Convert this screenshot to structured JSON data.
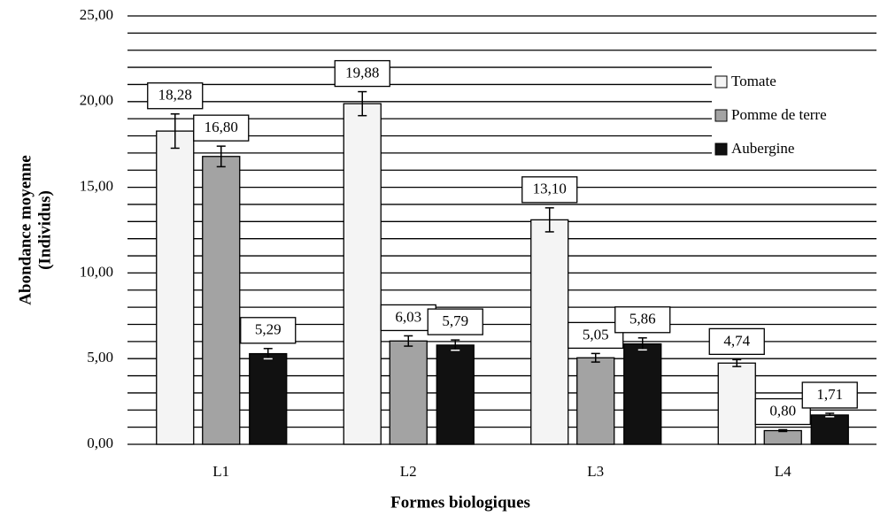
{
  "chart_data": {
    "type": "bar",
    "x_label": "Formes biologiques",
    "y_label": [
      "Abondance  moyenne",
      "(Individus)"
    ],
    "categories": [
      "L1",
      "L2",
      "L3",
      "L4"
    ],
    "series": [
      {
        "name": "Tomate",
        "color": "#f4f4f4",
        "values": [
          18.28,
          19.88,
          13.1,
          4.74
        ],
        "value_labels": [
          "18,28",
          "19,88",
          "13,10",
          "4,74"
        ],
        "errors": [
          1.0,
          0.7,
          0.7,
          0.2
        ]
      },
      {
        "name": "Pomme de terre",
        "color": "#a3a3a3",
        "values": [
          16.8,
          6.03,
          5.05,
          0.8
        ],
        "value_labels": [
          "16,80",
          "6,03",
          "5,05",
          "0,80"
        ],
        "errors": [
          0.6,
          0.3,
          0.25,
          0.05
        ]
      },
      {
        "name": "Aubergine",
        "color": "#111111",
        "values": [
          5.29,
          5.79,
          5.86,
          1.71
        ],
        "value_labels": [
          "5,29",
          "5,79",
          "5,86",
          "1,71"
        ],
        "errors": [
          0.3,
          0.3,
          0.35,
          0.1
        ]
      }
    ],
    "ylim": [
      0,
      25
    ],
    "yticks": [
      {
        "value": 0,
        "label": "0,00"
      },
      {
        "value": 5,
        "label": "5,00"
      },
      {
        "value": 10,
        "label": "10,00"
      },
      {
        "value": 15,
        "label": "15,00"
      },
      {
        "value": 20,
        "label": "20,00"
      },
      {
        "value": 25,
        "label": "25,00"
      }
    ],
    "grid_lines": [
      1,
      2,
      3,
      4,
      6,
      7,
      8,
      9,
      11,
      12,
      13,
      14,
      16,
      17,
      18,
      19,
      21,
      22,
      23,
      24
    ],
    "legend": "upper right"
  }
}
